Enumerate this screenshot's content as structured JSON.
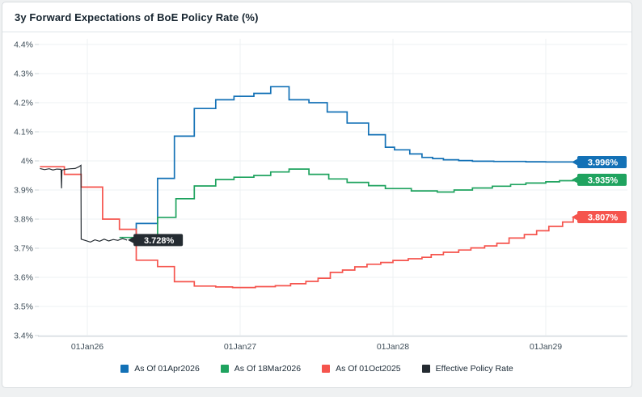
{
  "title": "3y Forward Expectations of BoE Policy Rate (%)",
  "chart_data": {
    "type": "line",
    "title": "3y Forward Expectations of BoE Policy Rate (%)",
    "unit": "%",
    "grid": true,
    "legend_position": "bottom",
    "x_axis": {
      "ticks": [
        {
          "year": 2026,
          "label": "01Jan26"
        },
        {
          "year": 2027,
          "label": "01Jan27"
        },
        {
          "year": 2028,
          "label": "01Jan28"
        },
        {
          "year": 2029,
          "label": "01Jan29"
        }
      ],
      "range_years": [
        2025.66,
        2029.35
      ]
    },
    "y_axis": {
      "min": 3.4,
      "max": 4.4,
      "tick_values": [
        4.4,
        4.3,
        4.2,
        4.1,
        4.0,
        3.9,
        3.8,
        3.7,
        3.6,
        3.5,
        3.4
      ],
      "tick_labels": [
        "4.4%",
        "4.3%",
        "4.2%",
        "4.1%",
        "4%",
        "3.9%",
        "3.8%",
        "3.7%",
        "3.6%",
        "3.5%",
        "3.4%"
      ]
    },
    "series": [
      {
        "id": "as-of-01apr2026",
        "name": "As Of 01Apr2026",
        "color": "#1371b6",
        "style": "step",
        "end_label": "3.996%",
        "end_label_side": "right",
        "points": [
          [
            2026.32,
            3.728
          ],
          [
            2026.32,
            3.785
          ],
          [
            2026.46,
            3.94
          ],
          [
            2026.57,
            4.085
          ],
          [
            2026.7,
            4.18
          ],
          [
            2026.84,
            4.21
          ],
          [
            2026.96,
            4.222
          ],
          [
            2027.09,
            4.232
          ],
          [
            2027.2,
            4.255
          ],
          [
            2027.32,
            4.21
          ],
          [
            2027.45,
            4.2
          ],
          [
            2027.57,
            4.168
          ],
          [
            2027.7,
            4.13
          ],
          [
            2027.84,
            4.09
          ],
          [
            2027.95,
            4.047
          ],
          [
            2028.01,
            4.038
          ],
          [
            2028.11,
            4.024
          ],
          [
            2028.19,
            4.012
          ],
          [
            2028.26,
            4.008
          ],
          [
            2028.33,
            4.004
          ],
          [
            2028.43,
            4.001
          ],
          [
            2028.52,
            3.999
          ],
          [
            2028.66,
            3.998
          ],
          [
            2028.87,
            3.997
          ],
          [
            2029.0,
            3.9965
          ],
          [
            2029.19,
            3.996
          ]
        ]
      },
      {
        "id": "as-of-18mar2026",
        "name": "As Of 18Mar2026",
        "color": "#1fa35f",
        "style": "step",
        "end_label": "3.935%",
        "end_label_side": "right",
        "points": [
          [
            2026.21,
            3.737
          ],
          [
            2026.46,
            3.806
          ],
          [
            2026.58,
            3.87
          ],
          [
            2026.7,
            3.914
          ],
          [
            2026.84,
            3.936
          ],
          [
            2026.96,
            3.944
          ],
          [
            2027.09,
            3.95
          ],
          [
            2027.2,
            3.962
          ],
          [
            2027.32,
            3.972
          ],
          [
            2027.45,
            3.954
          ],
          [
            2027.58,
            3.938
          ],
          [
            2027.7,
            3.926
          ],
          [
            2027.84,
            3.915
          ],
          [
            2027.95,
            3.905
          ],
          [
            2028.12,
            3.897
          ],
          [
            2028.29,
            3.893
          ],
          [
            2028.4,
            3.9
          ],
          [
            2028.52,
            3.907
          ],
          [
            2028.65,
            3.913
          ],
          [
            2028.77,
            3.919
          ],
          [
            2028.87,
            3.924
          ],
          [
            2029.0,
            3.928
          ],
          [
            2029.09,
            3.932
          ],
          [
            2029.19,
            3.935
          ]
        ]
      },
      {
        "id": "as-of-01oct2025",
        "name": "As Of 01Oct2025",
        "color": "#f5544d",
        "style": "step",
        "end_label": "3.807%",
        "end_label_side": "right",
        "points": [
          [
            2025.69,
            3.98
          ],
          [
            2025.85,
            3.954
          ],
          [
            2025.96,
            3.91
          ],
          [
            2026.1,
            3.8
          ],
          [
            2026.21,
            3.765
          ],
          [
            2026.32,
            3.659
          ],
          [
            2026.46,
            3.637
          ],
          [
            2026.57,
            3.585
          ],
          [
            2026.7,
            3.57
          ],
          [
            2026.84,
            3.567
          ],
          [
            2026.95,
            3.565
          ],
          [
            2027.1,
            3.568
          ],
          [
            2027.23,
            3.571
          ],
          [
            2027.33,
            3.578
          ],
          [
            2027.43,
            3.586
          ],
          [
            2027.51,
            3.597
          ],
          [
            2027.59,
            3.617
          ],
          [
            2027.67,
            3.625
          ],
          [
            2027.75,
            3.636
          ],
          [
            2027.83,
            3.645
          ],
          [
            2027.92,
            3.651
          ],
          [
            2028.0,
            3.658
          ],
          [
            2028.1,
            3.664
          ],
          [
            2028.19,
            3.669
          ],
          [
            2028.25,
            3.678
          ],
          [
            2028.33,
            3.686
          ],
          [
            2028.43,
            3.694
          ],
          [
            2028.51,
            3.701
          ],
          [
            2028.6,
            3.708
          ],
          [
            2028.68,
            3.717
          ],
          [
            2028.76,
            3.735
          ],
          [
            2028.86,
            3.747
          ],
          [
            2028.94,
            3.76
          ],
          [
            2029.02,
            3.775
          ],
          [
            2029.11,
            3.79
          ],
          [
            2029.18,
            3.807
          ],
          [
            2029.2,
            3.807
          ]
        ]
      },
      {
        "id": "effective-policy-rate",
        "name": "Effective Policy Rate",
        "color": "#242b31",
        "style": "line",
        "end_label": "3.728%",
        "end_label_side": "inline",
        "points": [
          [
            2025.69,
            3.974
          ],
          [
            2025.72,
            3.97
          ],
          [
            2025.75,
            3.973
          ],
          [
            2025.775,
            3.969
          ],
          [
            2025.8,
            3.972
          ],
          [
            2025.825,
            3.971
          ],
          [
            2025.828,
            3.971
          ],
          [
            2025.831,
            3.906
          ],
          [
            2025.834,
            3.969
          ],
          [
            2025.86,
            3.971
          ],
          [
            2025.89,
            3.973
          ],
          [
            2025.92,
            3.974
          ],
          [
            2025.945,
            3.98
          ],
          [
            2025.958,
            3.985
          ],
          [
            2025.96,
            3.731
          ],
          [
            2025.99,
            3.726
          ],
          [
            2026.02,
            3.721
          ],
          [
            2026.05,
            3.729
          ],
          [
            2026.08,
            3.724
          ],
          [
            2026.11,
            3.731
          ],
          [
            2026.14,
            3.725
          ],
          [
            2026.17,
            3.73
          ],
          [
            2026.2,
            3.727
          ],
          [
            2026.23,
            3.733
          ],
          [
            2026.26,
            3.728
          ]
        ]
      }
    ]
  },
  "legend": {
    "items": [
      "As Of 01Apr2026",
      "As Of 18Mar2026",
      "As Of 01Oct2025",
      "Effective Policy Rate"
    ]
  }
}
